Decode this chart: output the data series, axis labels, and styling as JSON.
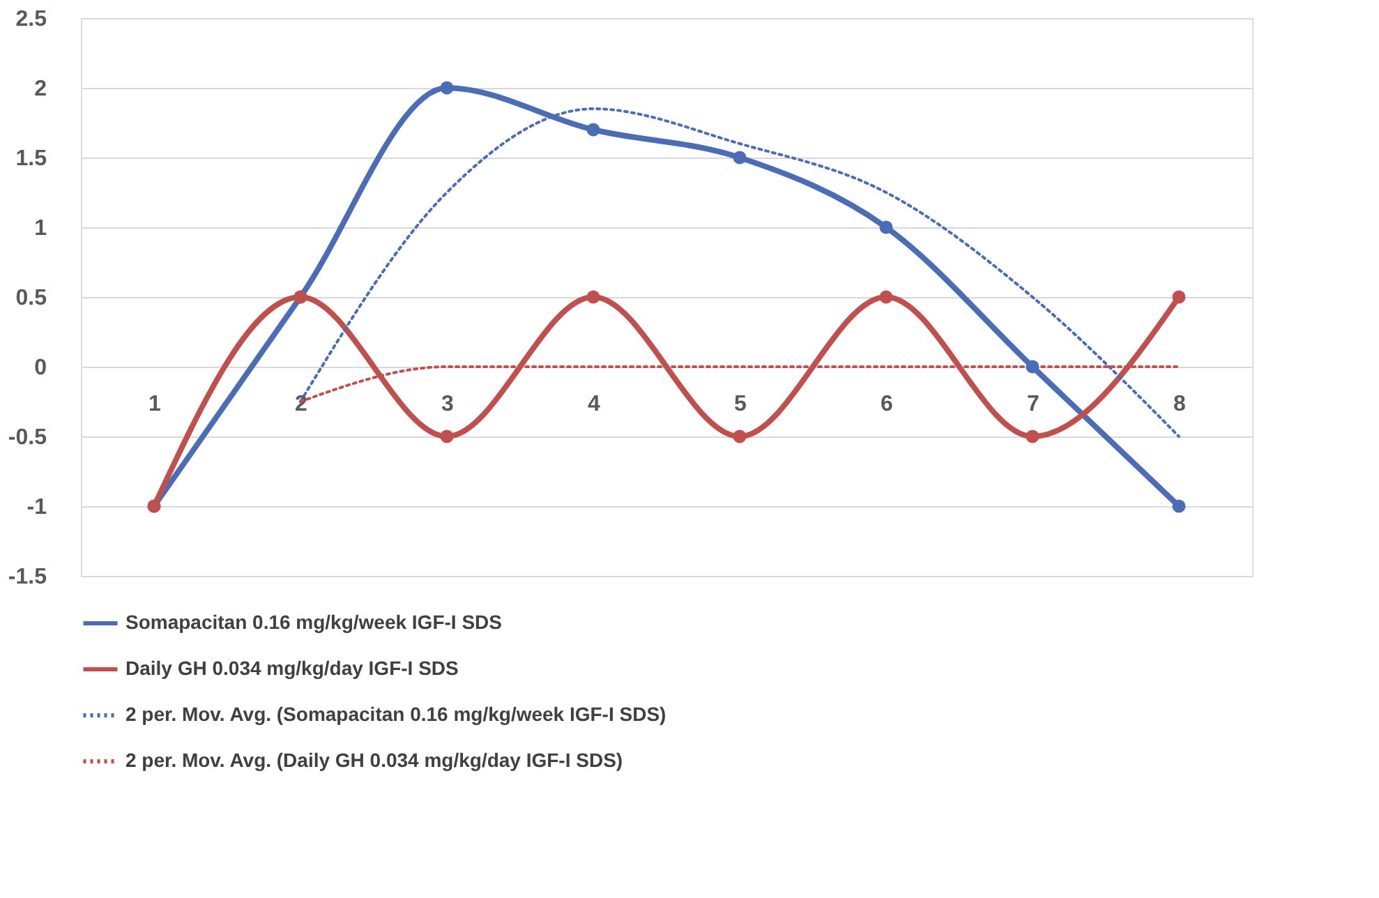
{
  "chart_data": {
    "type": "line",
    "categories": [
      "1",
      "2",
      "3",
      "4",
      "5",
      "6",
      "7",
      "8"
    ],
    "ylim": [
      -1.5,
      2.5
    ],
    "yticks": [
      -1.5,
      -1,
      -0.5,
      0,
      0.5,
      1,
      1.5,
      2,
      2.5
    ],
    "grid": "y",
    "legend": "bottom",
    "series": [
      {
        "name": "Somapacitan 0.16 mg/kg/week IGF-I SDS",
        "color": "#4a6db5",
        "values": [
          -1,
          0.5,
          2,
          1.7,
          1.5,
          1,
          0,
          -1
        ],
        "marker": "circle",
        "line_style": "solid"
      },
      {
        "name": "Daily GH 0.034 mg/kg/day IGF-I SDS",
        "color": "#c0504d",
        "values": [
          -1,
          0.5,
          -0.5,
          0.5,
          -0.5,
          0.5,
          -0.5,
          0.5
        ],
        "marker": "circle",
        "line_style": "solid"
      },
      {
        "name": "2 per. Mov. Avg. (Somapacitan 0.16 mg/kg/week IGF-I SDS)",
        "color": "#4a6db5",
        "values": [
          null,
          -0.25,
          1.25,
          1.85,
          1.6,
          1.25,
          0.5,
          -0.5
        ],
        "marker": "none",
        "line_style": "dotted"
      },
      {
        "name": "2 per. Mov. Avg. (Daily GH 0.034 mg/kg/day IGF-I SDS)",
        "color": "#c0504d",
        "values": [
          null,
          -0.25,
          0,
          0,
          0,
          0,
          0,
          0
        ],
        "marker": "none",
        "line_style": "dotted"
      }
    ]
  }
}
